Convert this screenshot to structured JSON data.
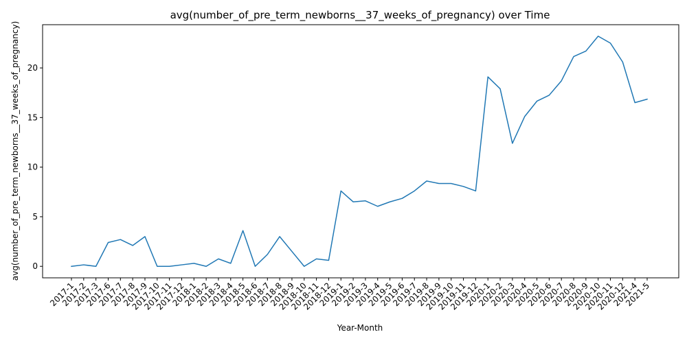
{
  "chart_data": {
    "type": "line",
    "title": "avg(number_of_pre_term_newborns__37_weeks_of_pregnancy) over Time",
    "xlabel": "Year-Month",
    "ylabel": "avg(number_of_pre_term_newborns__37_weeks_of_pregnancy)",
    "ylim": [
      -1.16,
      24.36
    ],
    "yticks": [
      0,
      5,
      10,
      15,
      20
    ],
    "grid": false,
    "color": "#1f77b4",
    "categories": [
      "2017-1",
      "2017-2",
      "2017-3",
      "2017-6",
      "2017-7",
      "2017-8",
      "2017-9",
      "2017-10",
      "2017-11",
      "2017-12",
      "2018-1",
      "2018-2",
      "2018-3",
      "2018-4",
      "2018-5",
      "2018-6",
      "2018-7",
      "2018-8",
      "2018-9",
      "2018-10",
      "2018-11",
      "2018-12",
      "2019-1",
      "2019-2",
      "2019-3",
      "2019-4",
      "2019-5",
      "2019-6",
      "2019-7",
      "2019-8",
      "2019-9",
      "2019-10",
      "2019-11",
      "2019-12",
      "2020-1",
      "2020-2",
      "2020-3",
      "2020-4",
      "2020-5",
      "2020-6",
      "2020-7",
      "2020-8",
      "2020-9",
      "2020-10",
      "2020-11",
      "2020-12",
      "2021-4",
      "2021-5"
    ],
    "values": [
      0,
      0.15,
      0,
      2.4,
      2.7,
      2.1,
      3.0,
      0,
      0,
      0.15,
      0.3,
      0,
      0.75,
      0.3,
      3.6,
      0,
      1.2,
      3.0,
      1.5,
      0,
      0.75,
      0.6,
      7.6,
      6.5,
      6.6,
      6.05,
      6.5,
      6.85,
      7.6,
      8.6,
      8.35,
      8.35,
      8.05,
      7.6,
      19.1,
      17.9,
      12.4,
      15.1,
      16.65,
      17.25,
      18.7,
      21.15,
      21.7,
      23.2,
      22.5,
      20.6,
      16.5,
      16.85
    ]
  }
}
